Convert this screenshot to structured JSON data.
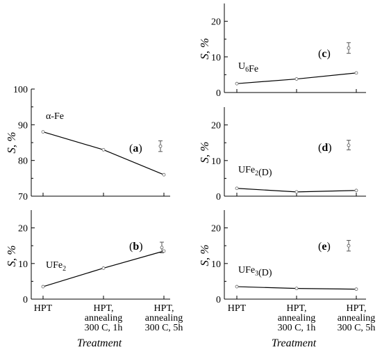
{
  "chart_data": [
    {
      "id": "a",
      "type": "line",
      "panel_label": "(a)",
      "annotation": "α-Fe",
      "ylabel": "S, %",
      "ylim": [
        70,
        100
      ],
      "yticks": [
        "70",
        "80",
        "90",
        "100"
      ],
      "categories": [
        "HPT",
        "HPT, annealing 300 C, 1h",
        "HPT, annealing 300 C, 5h"
      ],
      "values": [
        88,
        83,
        76
      ],
      "error_bar": {
        "center": 84,
        "low": 82.5,
        "high": 85.5
      }
    },
    {
      "id": "b",
      "type": "line",
      "panel_label": "(b)",
      "annotation": "UFe2",
      "ylabel": "S, %",
      "ylim": [
        0,
        25
      ],
      "yticks": [
        "0",
        "10",
        "20"
      ],
      "categories": [
        "HPT",
        "HPT, annealing 300 C, 1h",
        "HPT, annealing 300 C, 5h"
      ],
      "values": [
        3.5,
        8.7,
        13.5
      ],
      "error_bar": {
        "center": 14.5,
        "low": 13,
        "high": 16
      }
    },
    {
      "id": "c",
      "type": "line",
      "panel_label": "(c)",
      "annotation": "U6Fe",
      "ylabel": "S, %",
      "ylim": [
        0,
        25
      ],
      "yticks": [
        "0",
        "10",
        "20"
      ],
      "categories": [
        "HPT",
        "HPT, annealing 300 C, 1h",
        "HPT, annealing 300 C, 5h"
      ],
      "values": [
        2.5,
        3.8,
        5.5
      ],
      "error_bar": {
        "center": 12.5,
        "low": 11,
        "high": 14
      }
    },
    {
      "id": "d",
      "type": "line",
      "panel_label": "(d)",
      "annotation": "UFe2(D)",
      "ylabel": "S, %",
      "ylim": [
        0,
        25
      ],
      "yticks": [
        "0",
        "10",
        "20"
      ],
      "categories": [
        "HPT",
        "HPT, annealing 300 C, 1h",
        "HPT, annealing 300 C, 5h"
      ],
      "values": [
        2.2,
        1.2,
        1.6
      ],
      "error_bar": {
        "center": 14.3,
        "low": 13,
        "high": 15.7
      }
    },
    {
      "id": "e",
      "type": "line",
      "panel_label": "(e)",
      "annotation": "UFe3(D)",
      "ylabel": "S, %",
      "ylim": [
        0,
        25
      ],
      "yticks": [
        "0",
        "10",
        "20"
      ],
      "categories": [
        "HPT",
        "HPT, annealing 300 C, 1h",
        "HPT, annealing 300 C, 5h"
      ],
      "values": [
        3.5,
        3.0,
        2.8
      ],
      "error_bar": {
        "center": 15,
        "low": 13.5,
        "high": 16.5
      }
    }
  ],
  "x_tick_labels": [
    [
      "HPT"
    ],
    [
      "HPT,",
      "annealing",
      "300 C, 1h"
    ],
    [
      "HPT,",
      "annealing",
      "300 C, 5h"
    ]
  ],
  "xlabel": "Treatment"
}
